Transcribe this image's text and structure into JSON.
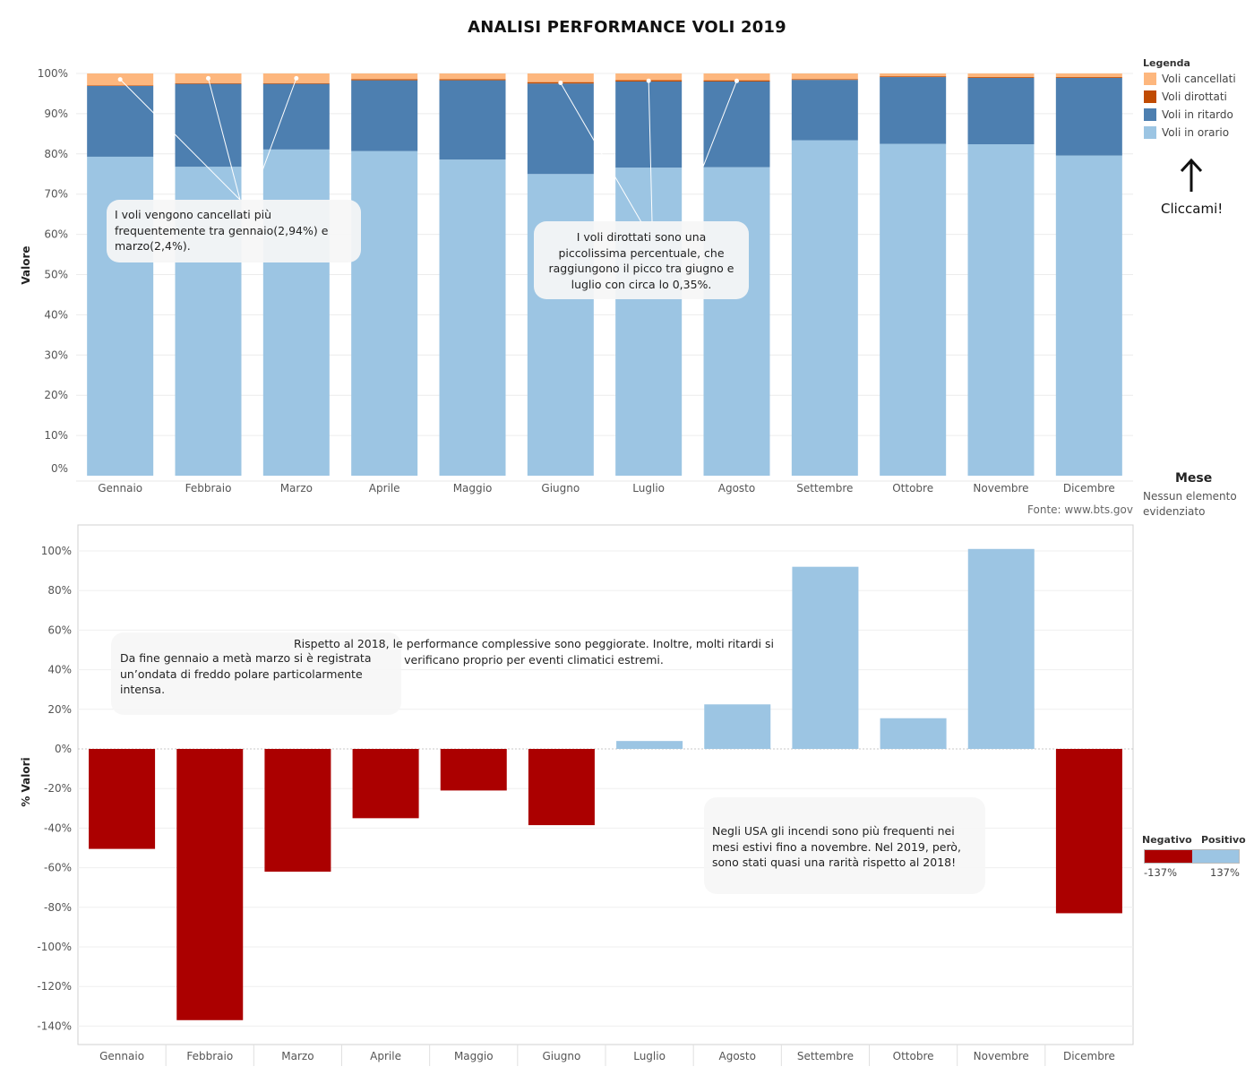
{
  "title": "ANALISI PERFORMANCE VOLI 2019",
  "legend": {
    "title": "Legenda",
    "items": [
      {
        "label": "Voli cancellati",
        "color": "#fdb77e"
      },
      {
        "label": "Voli dirottati",
        "color": "#c04b02"
      },
      {
        "label": "Voli in ritardo",
        "color": "#4d7fb0"
      },
      {
        "label": "Voli in orario",
        "color": "#9cc5e3"
      }
    ]
  },
  "cta": {
    "label": "Cliccami!",
    "icon": "arrow-up-icon"
  },
  "mese": {
    "title": "Mese",
    "subtitle": "Nessun elemento evidenziato"
  },
  "source": "Fonte: www.bts.gov",
  "annotations": {
    "cancellati": "I voli vengono cancellati più frequentemente tra gennaio(2,94%) e marzo(2,4%).",
    "dirottati": "I voli dirottati sono una piccolissima percentuale, che raggiungono il picco tra giugno e luglio con circa lo 0,35%.",
    "freddo": "Da fine gennaio a metà marzo si è registrata un’ondata di freddo polare particolarmente intensa.",
    "ritardi": "Rispetto al 2018, le performance complessive sono peggiorate. Inoltre, molti ritardi si verificano proprio per eventi climatici estremi.",
    "incendi": "Negli USA gli incendi sono più frequenti nei mesi estivi fino a novembre. Nel 2019, però, sono stati quasi una rarità rispetto al 2018!"
  },
  "diverging_legend": {
    "negative_label": "Negativo",
    "positive_label": "Positivo",
    "min_label": "-137%",
    "max_label": "137%",
    "negative_color": "#ab0000",
    "positive_color": "#9cc5e3"
  },
  "chart_data": [
    {
      "type": "bar",
      "stacked": true,
      "ylabel": "Valore",
      "xlabel": "",
      "ylim": [
        0,
        100
      ],
      "ytick_labels": [
        "0%",
        "10%",
        "20%",
        "30%",
        "40%",
        "50%",
        "60%",
        "70%",
        "80%",
        "90%",
        "100%"
      ],
      "categories": [
        "Gennaio",
        "Febbraio",
        "Marzo",
        "Aprile",
        "Maggio",
        "Giugno",
        "Luglio",
        "Agosto",
        "Settembre",
        "Ottobre",
        "Novembre",
        "Dicembre"
      ],
      "series": [
        {
          "name": "Voli in orario",
          "values": [
            79.3,
            76.8,
            81.1,
            80.7,
            78.6,
            75.0,
            76.6,
            76.7,
            83.4,
            82.5,
            82.4,
            79.6
          ]
        },
        {
          "name": "Voli in ritardo",
          "values": [
            17.6,
            20.6,
            16.3,
            17.6,
            19.7,
            22.5,
            21.4,
            21.3,
            15.0,
            16.6,
            16.5,
            19.3
          ]
        },
        {
          "name": "Voli dirottati",
          "values": [
            0.16,
            0.2,
            0.2,
            0.3,
            0.25,
            0.35,
            0.35,
            0.3,
            0.2,
            0.2,
            0.2,
            0.2
          ]
        },
        {
          "name": "Voli cancellati",
          "values": [
            2.94,
            2.4,
            2.4,
            1.4,
            1.45,
            2.15,
            1.65,
            1.7,
            1.4,
            0.7,
            0.9,
            0.9
          ]
        }
      ],
      "legend_position": "right",
      "grid": true
    },
    {
      "type": "bar",
      "ylabel": "% Valori",
      "xlabel": "",
      "ylim": [
        -150,
        110
      ],
      "ytick_labels": [
        "-140%",
        "-120%",
        "-100%",
        "-80%",
        "-60%",
        "-40%",
        "-20%",
        "0%",
        "20%",
        "40%",
        "60%",
        "80%",
        "100%"
      ],
      "categories": [
        "Gennaio",
        "Febbraio",
        "Marzo",
        "Aprile",
        "Maggio",
        "Giugno",
        "Luglio",
        "Agosto",
        "Settembre",
        "Ottobre",
        "Novembre",
        "Dicembre"
      ],
      "values": [
        -50.5,
        -137,
        -62,
        -35,
        -21,
        -38.5,
        4,
        22.5,
        92,
        15.5,
        101,
        -83
      ],
      "grid": true
    }
  ]
}
